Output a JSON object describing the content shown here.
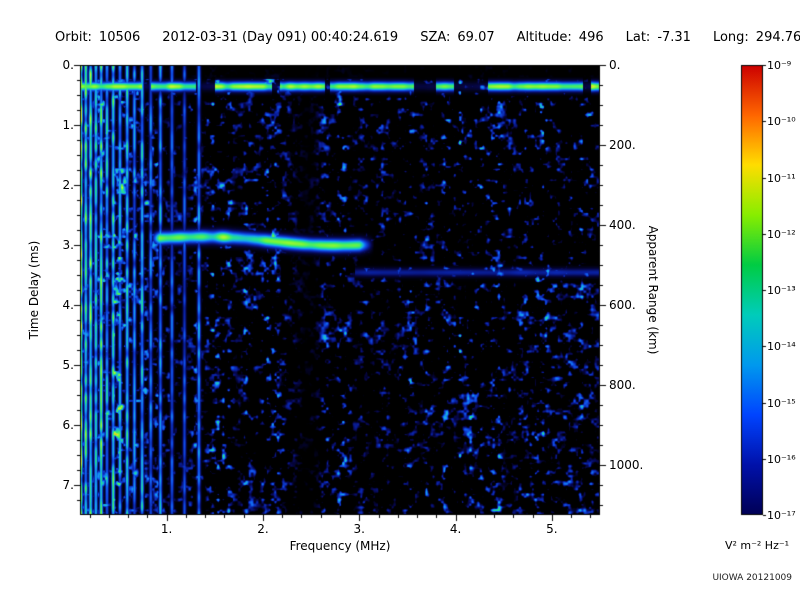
{
  "header": {
    "fields": [
      {
        "label": "Orbit:",
        "value": "10506"
      },
      {
        "label": "",
        "value": "2012-03-31 (Day 091) 00:40:24.619"
      },
      {
        "label": "SZA:",
        "value": "69.07"
      },
      {
        "label": "Altitude:",
        "value": "496"
      },
      {
        "label": "Lat:",
        "value": "-7.31"
      },
      {
        "label": "Long:",
        "value": "294.76"
      }
    ]
  },
  "chart_data": {
    "type": "heatmap",
    "title": "",
    "xlabel": "Frequency (MHz)",
    "ylabel_left": "Time Delay (ms)",
    "ylabel_right": "Apparent Range (km)",
    "xlim": [
      0.1,
      5.5
    ],
    "x_ticks": [
      1,
      2,
      3,
      4,
      5
    ],
    "x_tick_labels": [
      "1.",
      "2.",
      "3.",
      "4.",
      "5."
    ],
    "ylim_ms": [
      0,
      7.5
    ],
    "y_ticks_ms": [
      0,
      1,
      2,
      3,
      4,
      5,
      6,
      7
    ],
    "y_tick_labels": [
      "0.",
      "1.",
      "2.",
      "3.",
      "4.",
      "5.",
      "6.",
      "7."
    ],
    "right_ticks_km": [
      0,
      200,
      400,
      600,
      800,
      1000
    ],
    "right_tick_labels": [
      "0.",
      "200.",
      "400.",
      "600.",
      "800.",
      "1000."
    ],
    "background": "#000000",
    "colorbar": {
      "unit": "V² m⁻² Hz⁻¹",
      "scale": "log",
      "scale_max_exp": -9,
      "scale_min_exp": -17,
      "tick_labels": [
        "10⁻⁹",
        "10⁻¹⁰",
        "10⁻¹¹",
        "10⁻¹²",
        "10⁻¹³",
        "10⁻¹⁴",
        "10⁻¹⁵",
        "10⁻¹⁶",
        "10⁻¹⁷"
      ],
      "gradient_top_to_bottom": [
        "#cc0000",
        "#ff6600",
        "#ffdd00",
        "#88ee00",
        "#00cc44",
        "#00ccbb",
        "#0099ee",
        "#0044ff",
        "#0011aa",
        "#000055"
      ]
    },
    "heatmap_colormap": [
      {
        "pos": 0.0,
        "color": "#000000"
      },
      {
        "pos": 0.13,
        "color": "#060648"
      },
      {
        "pos": 0.26,
        "color": "#0a22a5"
      },
      {
        "pos": 0.4,
        "color": "#1056ee"
      },
      {
        "pos": 0.53,
        "color": "#18aaeb"
      },
      {
        "pos": 0.65,
        "color": "#22e191"
      },
      {
        "pos": 0.77,
        "color": "#6ef53e"
      },
      {
        "pos": 0.88,
        "color": "#cdf82a"
      },
      {
        "pos": 1.0,
        "color": "#ff9614"
      }
    ],
    "features": [
      {
        "name": "surface-echo-band",
        "type": "horizontal-line",
        "time_delay_ms": 0.35,
        "freq_range_mhz": [
          0.1,
          5.5
        ],
        "intensity": "strong",
        "note": "dashed right of ~3.1 MHz"
      },
      {
        "name": "ionospheric-echo-trace",
        "type": "trace",
        "time_delay_ms_range": [
          2.86,
          3.0
        ],
        "freq_range_mhz": [
          0.85,
          3.1
        ],
        "intensity": "strong"
      },
      {
        "name": "plasma-harmonic-stripes",
        "type": "vertical-lines",
        "freq_range_mhz": [
          0.1,
          1.4
        ],
        "full_height": true,
        "intensity": "strong"
      },
      {
        "name": "diffuse-noise-speckle",
        "type": "speckle",
        "freq_range_mhz": [
          0.1,
          5.5
        ],
        "intensity": "weak-blue"
      },
      {
        "name": "faint-horizontal-line",
        "type": "horizontal-line",
        "time_delay_ms": 3.45,
        "freq_range_mhz": [
          2.9,
          5.5
        ],
        "intensity": "faint"
      },
      {
        "name": "attenuation-gap",
        "type": "vertical-gap",
        "freq_range_mhz": [
          2.3,
          2.6
        ]
      }
    ]
  },
  "footer": {
    "credit": "UIOWA 20121009"
  }
}
